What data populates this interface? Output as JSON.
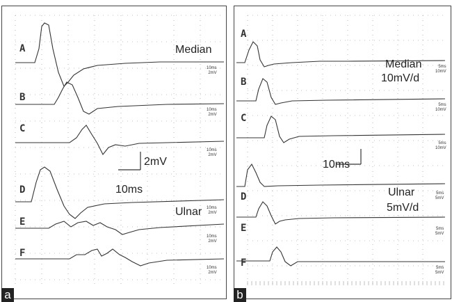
{
  "panel_a": {
    "tag": "a",
    "traces": [
      {
        "label": "A",
        "scale_time": "10ms",
        "scale_amp": "2mV"
      },
      {
        "label": "B",
        "scale_time": "10ms",
        "scale_amp": "2mV"
      },
      {
        "label": "C",
        "scale_time": "10ms",
        "scale_amp": "2mV"
      },
      {
        "label": "D",
        "scale_time": "10ms",
        "scale_amp": "2mV"
      },
      {
        "label": "E",
        "scale_time": "10ms",
        "scale_amp": "2mV"
      },
      {
        "label": "F",
        "scale_time": "10ms",
        "scale_amp": "2mV"
      }
    ],
    "median_label": "Median",
    "ulnar_label": "Ulnar",
    "calibration": {
      "amplitude": "2mV",
      "time": "10ms"
    }
  },
  "panel_b": {
    "tag": "b",
    "traces": [
      {
        "label": "A",
        "scale_time": "5ms",
        "scale_amp": "10mV"
      },
      {
        "label": "B",
        "scale_time": "5ms",
        "scale_amp": "10mV"
      },
      {
        "label": "C",
        "scale_time": "5ms",
        "scale_amp": "10mV"
      },
      {
        "label": "D",
        "scale_time": "5ms",
        "scale_amp": "5mV"
      },
      {
        "label": "E",
        "scale_time": "5ms",
        "scale_amp": "5mV"
      },
      {
        "label": "F",
        "scale_time": "5ms",
        "scale_amp": "5mV"
      }
    ],
    "median_label": "Median",
    "median_sublabel": "10mV/d",
    "ulnar_label": "Ulnar",
    "ulnar_sublabel": "5mV/d",
    "calibration": {
      "time": "10ms"
    }
  }
}
